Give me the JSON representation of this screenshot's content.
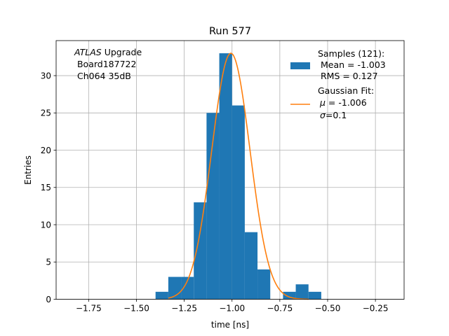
{
  "chart_data": {
    "type": "bar",
    "title": "Run 577",
    "xlabel": "time [ns]",
    "ylabel": "Entries",
    "xlim": [
      -1.92,
      -0.1
    ],
    "ylim": [
      0,
      34.7
    ],
    "xticks": [
      -1.75,
      -1.5,
      -1.25,
      -1.0,
      -0.75,
      -0.5,
      -0.25
    ],
    "xtick_labels": [
      "−1.75",
      "−1.50",
      "−1.25",
      "−1.00",
      "−0.75",
      "−0.50",
      "−0.25"
    ],
    "yticks": [
      0,
      5,
      10,
      15,
      20,
      25,
      30
    ],
    "ytick_labels": [
      "0",
      "5",
      "10",
      "15",
      "20",
      "25",
      "30"
    ],
    "grid": true,
    "annotation": {
      "line1_italic": "ATLAS",
      "line1_rest": " Upgrade",
      "line2": " Board187722",
      "line3": " Ch064 35dB"
    },
    "histogram": {
      "name": "Samples (121):",
      "color": "#1f77b4",
      "bin_edges": [
        -1.4,
        -1.3333,
        -1.2667,
        -1.2,
        -1.1333,
        -1.0667,
        -1.0,
        -0.9333,
        -0.8667,
        -0.8,
        -0.7333,
        -0.6667,
        -0.6,
        -0.5333
      ],
      "counts": [
        1,
        3,
        3,
        13,
        25,
        33,
        26,
        9,
        4,
        0,
        1,
        2,
        1
      ]
    },
    "fit": {
      "name": "Gaussian Fit:",
      "color": "#ff7f0e",
      "mu": -1.006,
      "sigma": 0.1,
      "amplitude": 33.0,
      "x_range": [
        -1.333,
        -0.6
      ]
    },
    "legend": {
      "placement": "upper right",
      "samples_label": "Samples (121):",
      "samples_mean": " Mean = -1.003",
      "samples_rms": " RMS = 0.127",
      "fit_label": "Gaussian Fit:",
      "fit_mu_symbol": "μ",
      "fit_mu_value": " = -1.006",
      "fit_sigma_symbol": "σ",
      "fit_sigma_value": "=0.1"
    }
  }
}
